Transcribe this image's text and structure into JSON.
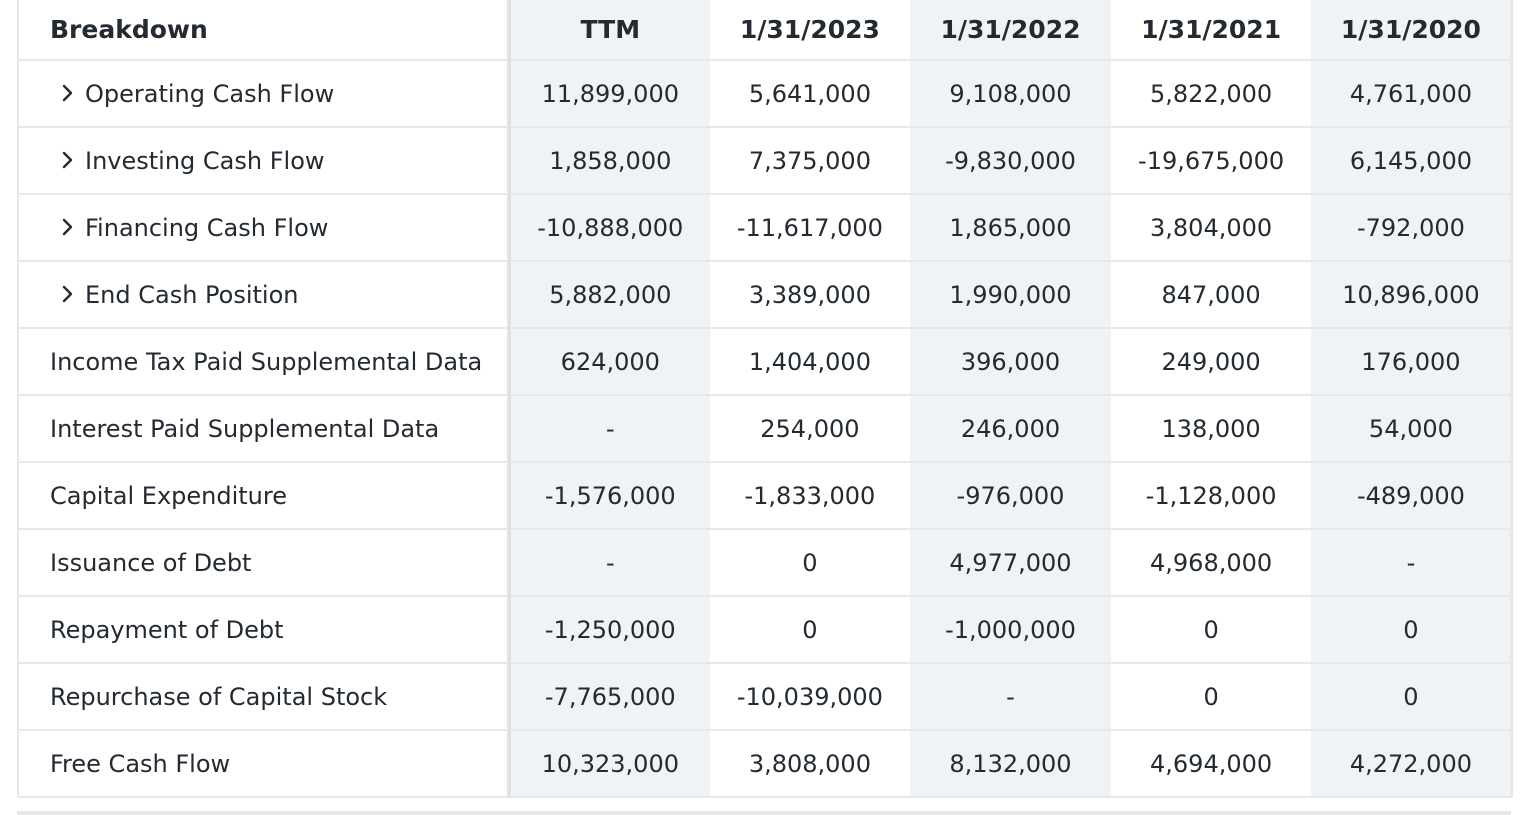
{
  "columns": [
    "Breakdown",
    "TTM",
    "1/31/2023",
    "1/31/2022",
    "1/31/2021",
    "1/31/2020"
  ],
  "rows": [
    {
      "label": "Operating Cash Flow",
      "expandable": true,
      "values": [
        "11,899,000",
        "5,641,000",
        "9,108,000",
        "5,822,000",
        "4,761,000"
      ]
    },
    {
      "label": "Investing Cash Flow",
      "expandable": true,
      "values": [
        "1,858,000",
        "7,375,000",
        "-9,830,000",
        "-19,675,000",
        "6,145,000"
      ]
    },
    {
      "label": "Financing Cash Flow",
      "expandable": true,
      "values": [
        "-10,888,000",
        "-11,617,000",
        "1,865,000",
        "3,804,000",
        "-792,000"
      ]
    },
    {
      "label": "End Cash Position",
      "expandable": true,
      "values": [
        "5,882,000",
        "3,389,000",
        "1,990,000",
        "847,000",
        "10,896,000"
      ]
    },
    {
      "label": "Income Tax Paid Supplemental Data",
      "expandable": false,
      "values": [
        "624,000",
        "1,404,000",
        "396,000",
        "249,000",
        "176,000"
      ]
    },
    {
      "label": "Interest Paid Supplemental Data",
      "expandable": false,
      "values": [
        "-",
        "254,000",
        "246,000",
        "138,000",
        "54,000"
      ]
    },
    {
      "label": "Capital Expenditure",
      "expandable": false,
      "values": [
        "-1,576,000",
        "-1,833,000",
        "-976,000",
        "-1,128,000",
        "-489,000"
      ]
    },
    {
      "label": "Issuance of Debt",
      "expandable": false,
      "values": [
        "-",
        "0",
        "4,977,000",
        "4,968,000",
        "-"
      ]
    },
    {
      "label": "Repayment of Debt",
      "expandable": false,
      "values": [
        "-1,250,000",
        "0",
        "-1,000,000",
        "0",
        "0"
      ]
    },
    {
      "label": "Repurchase of Capital Stock",
      "expandable": false,
      "values": [
        "-7,765,000",
        "-10,039,000",
        "-",
        "0",
        "0"
      ]
    },
    {
      "label": "Free Cash Flow",
      "expandable": false,
      "values": [
        "10,323,000",
        "3,808,000",
        "8,132,000",
        "4,694,000",
        "4,272,000"
      ]
    }
  ],
  "icons": {
    "expand": "chevron-right-icon"
  },
  "colors": {
    "text": "#232a31",
    "shade": "#f0f3f5",
    "border": "#e6e8ea"
  }
}
